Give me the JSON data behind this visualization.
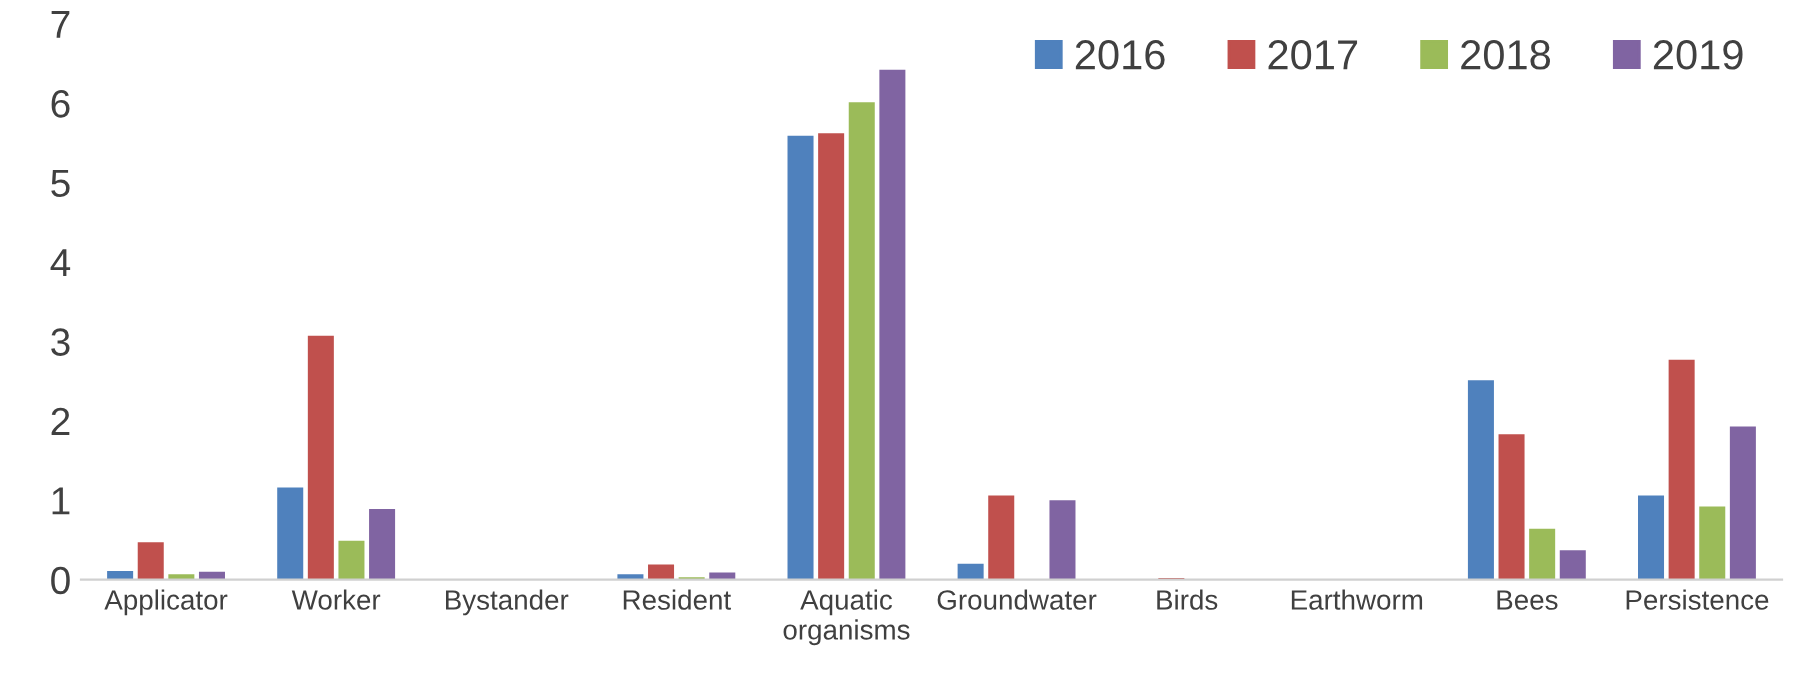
{
  "chart_data": {
    "type": "bar",
    "categories": [
      "Applicator",
      "Worker",
      "Bystander",
      "Resident",
      "Aquatic\norganisms",
      "Groundwater",
      "Birds",
      "Earthworm",
      "Bees",
      "Persistence"
    ],
    "series": [
      {
        "name": "2016",
        "color": "#4f81bd",
        "values": [
          0.11,
          1.16,
          null,
          0.07,
          5.59,
          0.2,
          null,
          null,
          2.51,
          1.06
        ]
      },
      {
        "name": "2017",
        "color": "#c0504d",
        "values": [
          0.47,
          3.07,
          null,
          0.19,
          5.62,
          1.06,
          0.02,
          null,
          1.83,
          2.77
        ]
      },
      {
        "name": "2018",
        "color": "#9bbb59",
        "values": [
          0.07,
          0.49,
          null,
          0.03,
          6.01,
          null,
          null,
          null,
          0.64,
          0.92
        ]
      },
      {
        "name": "2019",
        "color": "#8064a2",
        "values": [
          0.1,
          0.89,
          null,
          0.09,
          6.42,
          1.0,
          null,
          null,
          0.37,
          1.93
        ]
      }
    ],
    "ylim": [
      0,
      7
    ],
    "yticks": [
      0,
      1,
      2,
      3,
      4,
      5,
      6,
      7
    ],
    "grid": false,
    "legend": "top right"
  }
}
